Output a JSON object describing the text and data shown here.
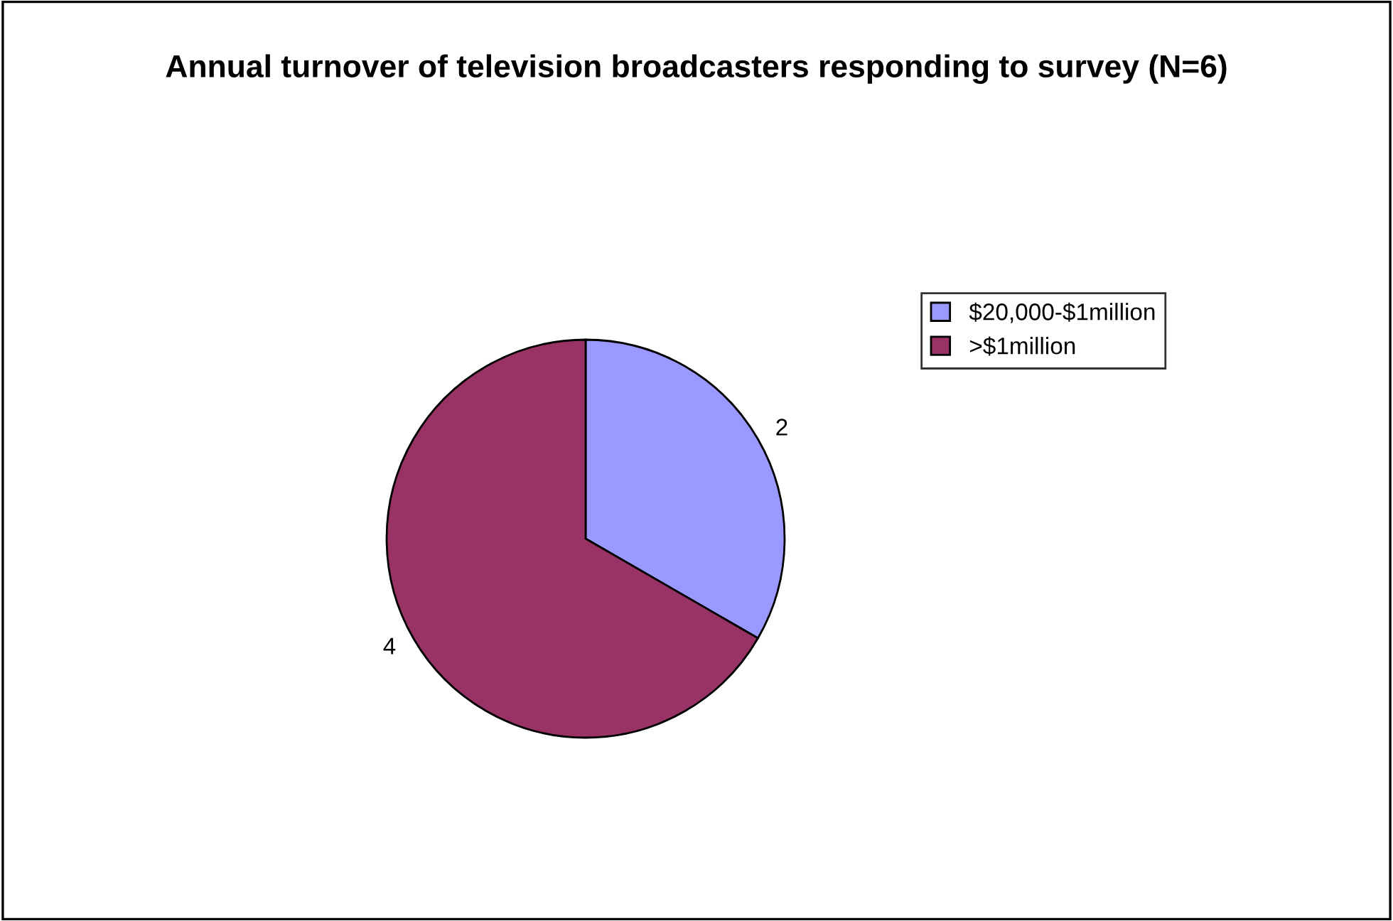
{
  "chart_data": {
    "type": "pie",
    "title": "Annual turnover of television broadcasters responding to survey (N=6)",
    "categories": [
      "$20,000-$1million",
      ">$1million"
    ],
    "values": [
      2,
      4
    ],
    "colors": [
      "#9999ff",
      "#993366"
    ],
    "data_labels": true,
    "legend": "right"
  }
}
